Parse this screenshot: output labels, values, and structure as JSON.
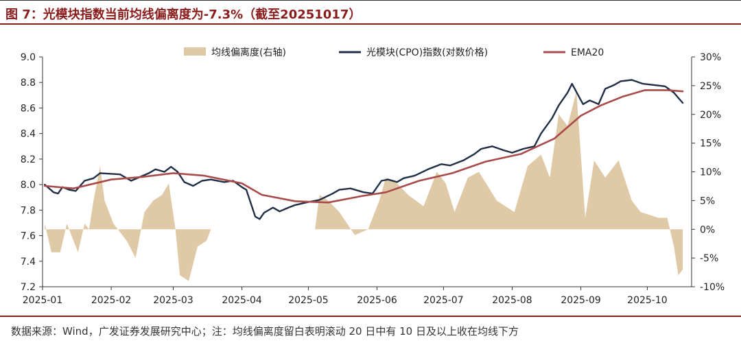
{
  "title": "图 7：光模块指数当前均线偏离度为-7.3%（截至20251017）",
  "source": "数据来源：Wind，广发证券发展研究中心；注：均线偏离度留白表明滚动 20 日中有 10 日及以上收在均线下方",
  "colors": {
    "deviation": "#dfc9a6",
    "index": "#1f2d45",
    "ema": "#a84a4a",
    "axis": "#333333"
  },
  "chart_data": {
    "type": "line",
    "legend": {
      "placement": "top-center",
      "entries": [
        "均线偏离度(右轴)",
        "光模块(CPO)指数(对数价格)",
        "EMA20"
      ]
    },
    "x_tick_labels": [
      "2025-01",
      "2025-02",
      "2025-03",
      "2025-04",
      "2025-05",
      "2025-06",
      "2025-07",
      "2025-08",
      "2025-09",
      "2025-10"
    ],
    "y_left": {
      "range": [
        7.2,
        9.0
      ],
      "ticks": [
        "7.2",
        "7.4",
        "7.6",
        "7.8",
        "8.0",
        "8.2",
        "8.4",
        "8.6",
        "8.8",
        "9.0"
      ]
    },
    "y_right": {
      "range": [
        -10,
        30
      ],
      "ticks": [
        "-10%",
        "-5%",
        "0%",
        "5%",
        "10%",
        "15%",
        "20%",
        "25%",
        "30%"
      ]
    },
    "series": [
      {
        "name": "光模块(CPO)指数(对数价格)",
        "axis": "left",
        "points": [
          [
            "2025-01-02",
            8.0
          ],
          [
            "2025-01-06",
            7.94
          ],
          [
            "2025-01-08",
            7.93
          ],
          [
            "2025-01-10",
            7.98
          ],
          [
            "2025-01-13",
            7.96
          ],
          [
            "2025-01-16",
            7.95
          ],
          [
            "2025-01-20",
            8.03
          ],
          [
            "2025-01-24",
            8.05
          ],
          [
            "2025-01-27",
            8.09
          ],
          [
            "2025-02-05",
            8.08
          ],
          [
            "2025-02-10",
            8.03
          ],
          [
            "2025-02-14",
            8.06
          ],
          [
            "2025-02-18",
            8.09
          ],
          [
            "2025-02-21",
            8.12
          ],
          [
            "2025-02-25",
            8.1
          ],
          [
            "2025-02-28",
            8.14
          ],
          [
            "2025-03-03",
            8.1
          ],
          [
            "2025-03-06",
            8.02
          ],
          [
            "2025-03-10",
            7.99
          ],
          [
            "2025-03-14",
            8.03
          ],
          [
            "2025-03-18",
            8.04
          ],
          [
            "2025-03-24",
            8.02
          ],
          [
            "2025-03-28",
            8.03
          ],
          [
            "2025-04-01",
            7.98
          ],
          [
            "2025-04-03",
            7.96
          ],
          [
            "2025-04-07",
            7.75
          ],
          [
            "2025-04-09",
            7.73
          ],
          [
            "2025-04-11",
            7.78
          ],
          [
            "2025-04-15",
            7.82
          ],
          [
            "2025-04-18",
            7.79
          ],
          [
            "2025-04-22",
            7.82
          ],
          [
            "2025-04-25",
            7.84
          ],
          [
            "2025-04-30",
            7.86
          ],
          [
            "2025-05-06",
            7.88
          ],
          [
            "2025-05-12",
            7.93
          ],
          [
            "2025-05-15",
            7.96
          ],
          [
            "2025-05-20",
            7.97
          ],
          [
            "2025-05-26",
            7.94
          ],
          [
            "2025-05-30",
            7.93
          ],
          [
            "2025-06-03",
            8.03
          ],
          [
            "2025-06-06",
            8.04
          ],
          [
            "2025-06-10",
            8.02
          ],
          [
            "2025-06-13",
            8.05
          ],
          [
            "2025-06-18",
            8.07
          ],
          [
            "2025-06-24",
            8.12
          ],
          [
            "2025-06-30",
            8.16
          ],
          [
            "2025-07-04",
            8.15
          ],
          [
            "2025-07-10",
            8.19
          ],
          [
            "2025-07-15",
            8.24
          ],
          [
            "2025-07-18",
            8.28
          ],
          [
            "2025-07-23",
            8.3
          ],
          [
            "2025-07-28",
            8.27
          ],
          [
            "2025-08-01",
            8.25
          ],
          [
            "2025-08-06",
            8.28
          ],
          [
            "2025-08-11",
            8.3
          ],
          [
            "2025-08-14",
            8.4
          ],
          [
            "2025-08-19",
            8.52
          ],
          [
            "2025-08-22",
            8.62
          ],
          [
            "2025-08-26",
            8.72
          ],
          [
            "2025-08-28",
            8.79
          ],
          [
            "2025-09-02",
            8.63
          ],
          [
            "2025-09-05",
            8.66
          ],
          [
            "2025-09-09",
            8.63
          ],
          [
            "2025-09-12",
            8.75
          ],
          [
            "2025-09-16",
            8.78
          ],
          [
            "2025-09-19",
            8.81
          ],
          [
            "2025-09-24",
            8.82
          ],
          [
            "2025-09-29",
            8.79
          ],
          [
            "2025-10-09",
            8.77
          ],
          [
            "2025-10-13",
            8.72
          ],
          [
            "2025-10-15",
            8.68
          ],
          [
            "2025-10-17",
            8.64
          ]
        ]
      },
      {
        "name": "EMA20",
        "axis": "left",
        "points": [
          [
            "2025-01-02",
            7.99
          ],
          [
            "2025-01-15",
            7.97
          ],
          [
            "2025-02-01",
            8.04
          ],
          [
            "2025-02-15",
            8.06
          ],
          [
            "2025-03-01",
            8.09
          ],
          [
            "2025-03-15",
            8.07
          ],
          [
            "2025-04-01",
            8.01
          ],
          [
            "2025-04-10",
            7.92
          ],
          [
            "2025-04-25",
            7.87
          ],
          [
            "2025-05-10",
            7.86
          ],
          [
            "2025-05-25",
            7.91
          ],
          [
            "2025-06-05",
            7.94
          ],
          [
            "2025-06-20",
            8.03
          ],
          [
            "2025-07-05",
            8.09
          ],
          [
            "2025-07-20",
            8.18
          ],
          [
            "2025-08-05",
            8.24
          ],
          [
            "2025-08-20",
            8.36
          ],
          [
            "2025-09-01",
            8.54
          ],
          [
            "2025-09-10",
            8.62
          ],
          [
            "2025-09-20",
            8.69
          ],
          [
            "2025-09-30",
            8.74
          ],
          [
            "2025-10-10",
            8.74
          ],
          [
            "2025-10-17",
            8.73
          ]
        ]
      },
      {
        "name": "均线偏离度(右轴)",
        "axis": "right",
        "type": "area",
        "points": [
          [
            "2025-01-02",
            1
          ],
          [
            "2025-01-05",
            -4
          ],
          [
            "2025-01-09",
            -4
          ],
          [
            "2025-01-12",
            1
          ],
          [
            "2025-01-15",
            -2
          ],
          [
            "2025-01-17",
            -4
          ],
          [
            "2025-01-20",
            1
          ],
          [
            "2025-01-22",
            0
          ],
          [
            "2025-01-24",
            5
          ],
          [
            "2025-01-27",
            11
          ],
          [
            "2025-01-29",
            5
          ],
          [
            "2025-02-02",
            1
          ],
          [
            "2025-02-08",
            -2
          ],
          [
            "2025-02-12",
            -5
          ],
          [
            "2025-02-16",
            3
          ],
          [
            "2025-02-20",
            5
          ],
          [
            "2025-02-24",
            6
          ],
          [
            "2025-02-27",
            8
          ],
          [
            "2025-03-02",
            0
          ],
          [
            "2025-03-04",
            -8
          ],
          [
            "2025-03-08",
            -9
          ],
          [
            "2025-03-12",
            -3
          ],
          [
            "2025-03-16",
            -2
          ],
          [
            "2025-03-18",
            0
          ],
          [
            "2025-05-04",
            0
          ],
          [
            "2025-05-06",
            6
          ],
          [
            "2025-05-10",
            5
          ],
          [
            "2025-05-15",
            3
          ],
          [
            "2025-05-22",
            -1
          ],
          [
            "2025-05-28",
            0
          ],
          [
            "2025-06-02",
            5
          ],
          [
            "2025-06-05",
            9
          ],
          [
            "2025-06-10",
            8
          ],
          [
            "2025-06-15",
            6
          ],
          [
            "2025-06-22",
            4
          ],
          [
            "2025-06-28",
            10
          ],
          [
            "2025-07-02",
            8
          ],
          [
            "2025-07-06",
            3
          ],
          [
            "2025-07-12",
            9
          ],
          [
            "2025-07-17",
            10
          ],
          [
            "2025-07-25",
            5
          ],
          [
            "2025-08-02",
            3
          ],
          [
            "2025-08-08",
            11
          ],
          [
            "2025-08-14",
            13
          ],
          [
            "2025-08-18",
            9
          ],
          [
            "2025-08-22",
            20
          ],
          [
            "2025-08-26",
            18
          ],
          [
            "2025-08-30",
            24
          ],
          [
            "2025-09-03",
            2
          ],
          [
            "2025-09-07",
            12
          ],
          [
            "2025-09-12",
            9
          ],
          [
            "2025-09-18",
            12
          ],
          [
            "2025-09-24",
            5
          ],
          [
            "2025-09-28",
            3
          ],
          [
            "2025-10-06",
            2
          ],
          [
            "2025-10-10",
            2
          ],
          [
            "2025-10-13",
            -3
          ],
          [
            "2025-10-15",
            -8
          ],
          [
            "2025-10-17",
            -7
          ]
        ]
      }
    ]
  }
}
